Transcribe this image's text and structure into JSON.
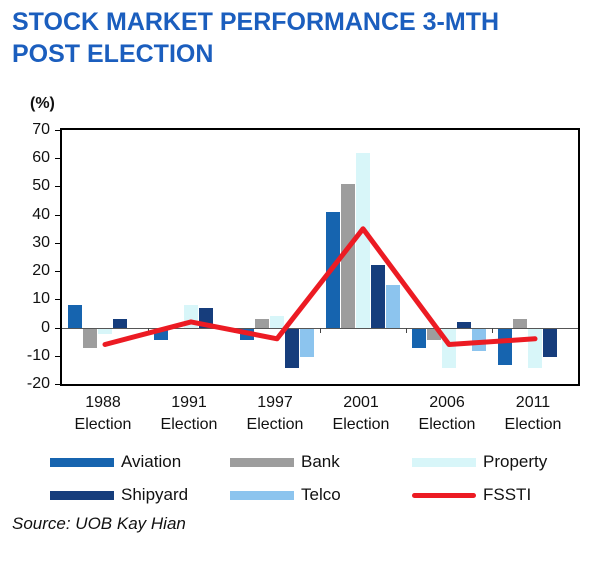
{
  "title_lines": [
    "STOCK MARKET PERFORMANCE 3-MTH",
    "POST ELECTION"
  ],
  "source": "Source: UOB Kay Hian",
  "colors": {
    "title_blue": "#1b5ebe",
    "aviation": "#1664AF",
    "bank": "#9D9D9D",
    "property": "#D8F6F9",
    "shipyard": "#163D7C",
    "telco": "#8CC4EE",
    "fssti": "#EC1B23"
  },
  "chart_data": {
    "type": "bar",
    "subtype": "grouped bars with overlay line",
    "title": "STOCK MARKET PERFORMANCE 3-MTH POST ELECTION",
    "ylabel": "(%)",
    "xlabel": "",
    "ylim": [
      -20,
      70
    ],
    "yticks": [
      70,
      60,
      50,
      40,
      30,
      20,
      10,
      0,
      -10,
      -20
    ],
    "grid": false,
    "categories": [
      "1988 Election",
      "1991 Election",
      "1997 Election",
      "2001 Election",
      "2006 Election",
      "2011 Election"
    ],
    "bar_series": [
      {
        "name": "Aviation",
        "color": "#1664AF",
        "values": [
          8,
          -4,
          -4,
          41,
          -7,
          -13
        ]
      },
      {
        "name": "Bank",
        "color": "#9D9D9D",
        "values": [
          -7,
          null,
          3,
          51,
          -4,
          3
        ]
      },
      {
        "name": "Property",
        "color": "#D8F6F9",
        "values": [
          -2,
          8,
          4,
          62,
          -14,
          -14
        ]
      },
      {
        "name": "Shipyard",
        "color": "#163D7C",
        "values": [
          3,
          7,
          -14,
          22,
          2,
          -10
        ]
      },
      {
        "name": "Telco",
        "color": "#8CC4EE",
        "values": [
          null,
          null,
          -10,
          15,
          -8,
          null
        ]
      }
    ],
    "line_series": [
      {
        "name": "FSSTI",
        "color": "#EC1B23",
        "values": [
          -6,
          2,
          -4,
          35,
          -6,
          -4
        ]
      }
    ],
    "legend": {
      "position": "bottom",
      "entries": [
        {
          "label": "Aviation",
          "color": "#1664AF",
          "kind": "bar"
        },
        {
          "label": "Bank",
          "color": "#9D9D9D",
          "kind": "bar"
        },
        {
          "label": "Property",
          "color": "#D8F6F9",
          "kind": "bar"
        },
        {
          "label": "Shipyard",
          "color": "#163D7C",
          "kind": "bar"
        },
        {
          "label": "Telco",
          "color": "#8CC4EE",
          "kind": "bar"
        },
        {
          "label": "FSSTI",
          "color": "#EC1B23",
          "kind": "line"
        }
      ]
    }
  }
}
